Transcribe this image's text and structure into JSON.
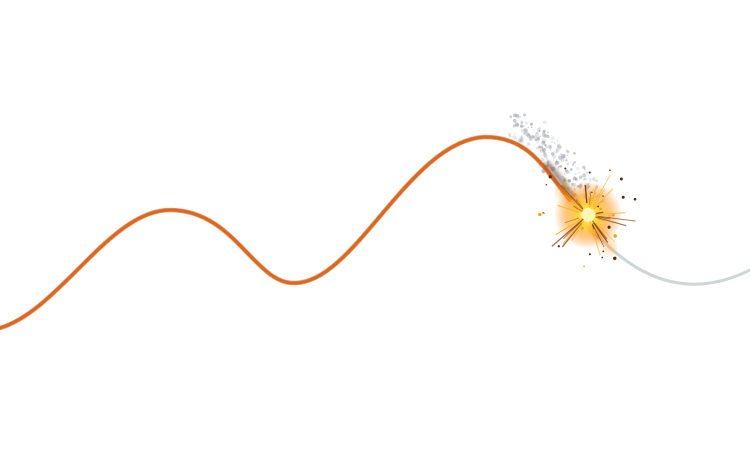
{
  "scene": {
    "background_color": "#ffffff",
    "burning_fuse": {
      "burnt_color": "#e0661a",
      "burnt_color_dark": "#b84a12",
      "unburnt_color": "#cfd6d6",
      "spark_core_color": "#ffe14a",
      "spark_glow_color": "#ffb020",
      "ember_color": "#5a2a10",
      "smoke_color": "#9aa0a6"
    }
  }
}
